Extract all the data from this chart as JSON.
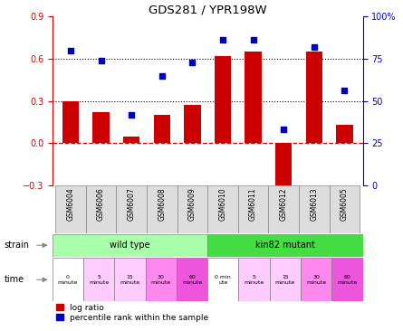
{
  "title": "GDS281 / YPR198W",
  "categories": [
    "GSM6004",
    "GSM6006",
    "GSM6007",
    "GSM6008",
    "GSM6009",
    "GSM6010",
    "GSM6011",
    "GSM6012",
    "GSM6013",
    "GSM6005"
  ],
  "log_ratio": [
    0.3,
    0.22,
    0.05,
    0.2,
    0.27,
    0.62,
    0.65,
    -0.32,
    0.65,
    0.13
  ],
  "percentile": [
    80,
    74,
    42,
    65,
    73,
    86,
    86,
    33,
    82,
    56
  ],
  "ylim_left": [
    -0.3,
    0.9
  ],
  "ylim_right": [
    0,
    100
  ],
  "yticks_left": [
    -0.3,
    0.0,
    0.3,
    0.6,
    0.9
  ],
  "yticks_right": [
    0,
    25,
    50,
    75,
    100
  ],
  "hline_y": [
    0.3,
    0.6
  ],
  "bar_color": "#cc0000",
  "dot_color": "#0000bb",
  "zero_line_color": "#cc0000",
  "strain_labels": [
    "wild type",
    "kin82 mutant"
  ],
  "strain_colors": [
    "#aaffaa",
    "#44dd44"
  ],
  "time_labels": [
    "0\nminute",
    "5\nminute",
    "15\nminute",
    "30\nminute",
    "60\nminute",
    "0 min\nute",
    "5\nminute",
    "15\nminute",
    "30\nminute",
    "60\nminute"
  ],
  "time_colors": [
    "#ffffff",
    "#ffccff",
    "#ffccff",
    "#ff88ee",
    "#ee55dd",
    "#ffffff",
    "#ffccff",
    "#ffccff",
    "#ff88ee",
    "#ee55dd"
  ],
  "gsm_bg": "#dddddd",
  "legend_bar_label": "log ratio",
  "legend_dot_label": "percentile rank within the sample"
}
